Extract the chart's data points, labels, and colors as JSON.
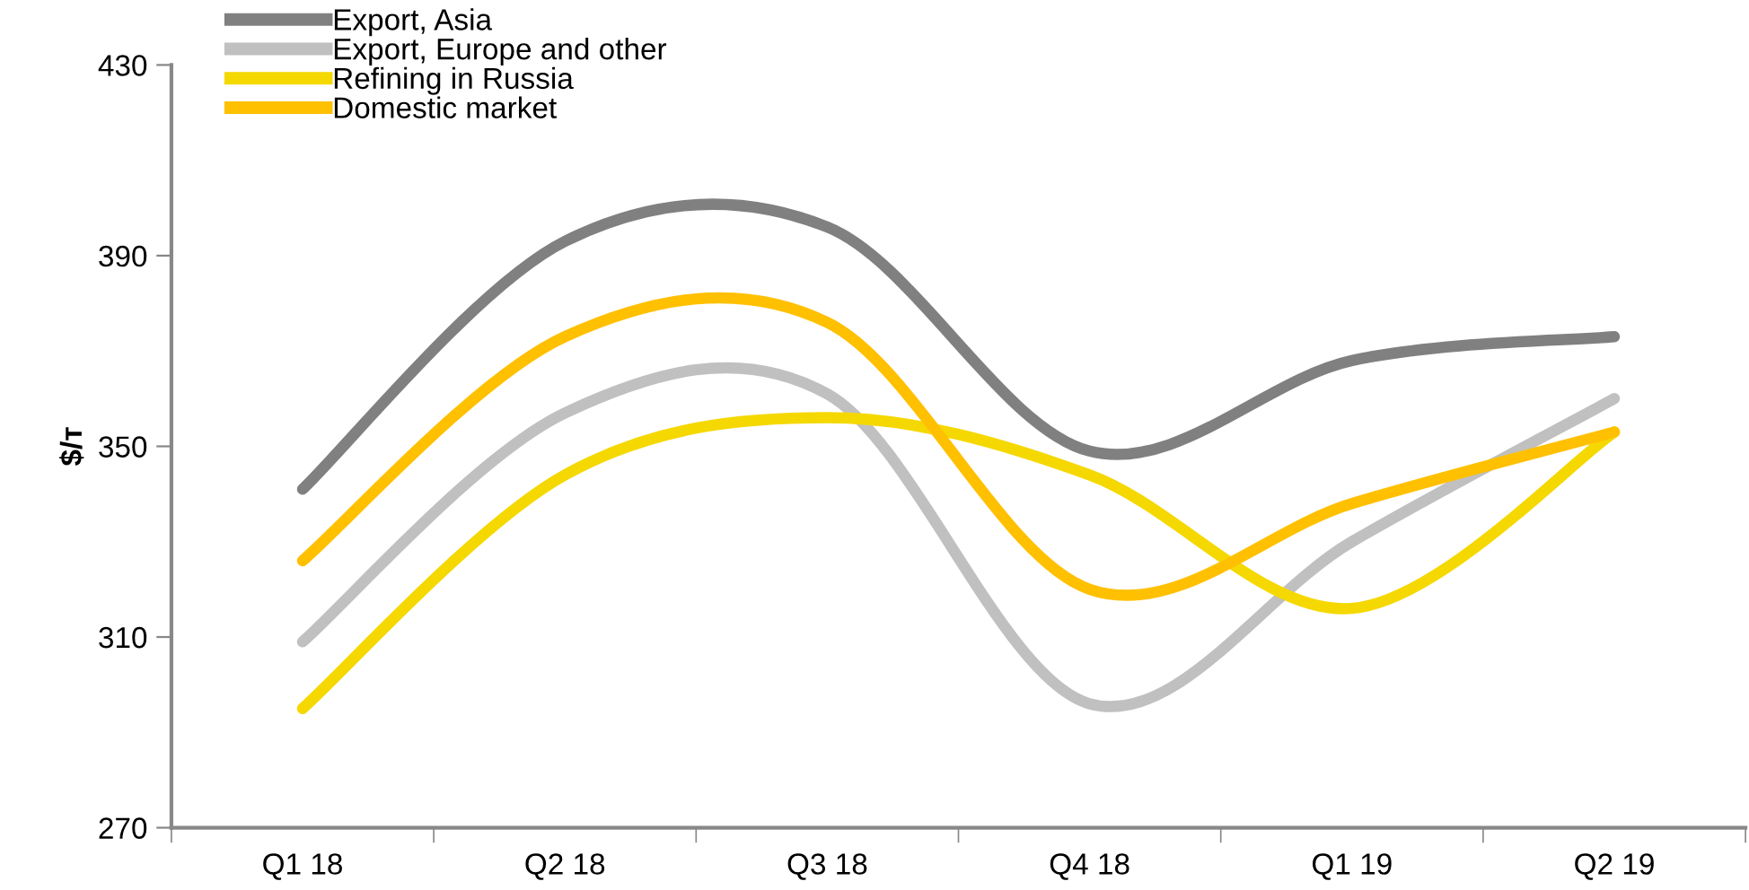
{
  "chart_data": {
    "type": "line",
    "ylabel": "$/т",
    "categories": [
      "Q1 18",
      "Q2 18",
      "Q3 18",
      "Q4 18",
      "Q1 19",
      "Q2 19"
    ],
    "series": [
      {
        "name": "Export, Asia",
        "color": "#808080",
        "values": [
          341,
          393,
          396,
          349,
          368,
          373
        ]
      },
      {
        "name": "Export, Europe and other",
        "color": "#c0c0c0",
        "values": [
          309,
          357,
          361,
          296,
          330,
          360
        ]
      },
      {
        "name": "Refining in Russia",
        "color": "#f5d800",
        "values": [
          295,
          344,
          356,
          344,
          316,
          353
        ]
      },
      {
        "name": "Domestic market",
        "color": "#ffc000",
        "values": [
          326,
          373,
          376,
          320,
          338,
          353
        ]
      }
    ],
    "ylim": [
      270,
      430
    ],
    "yticks": [
      270,
      310,
      350,
      390,
      430
    ],
    "grid": false,
    "legend": "top left",
    "marker": "none",
    "line_style": "solid"
  }
}
